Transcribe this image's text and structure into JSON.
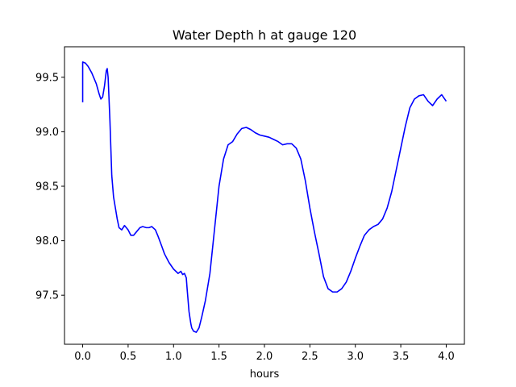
{
  "chart_data": {
    "type": "line",
    "title": "Water Depth h at gauge 120",
    "xlabel": "hours",
    "ylabel": "",
    "xlim": [
      -0.2,
      4.2
    ],
    "ylim": [
      97.05,
      99.78
    ],
    "xticks": [
      0.0,
      0.5,
      1.0,
      1.5,
      2.0,
      2.5,
      3.0,
      3.5,
      4.0
    ],
    "xtick_labels": [
      "0.0",
      "0.5",
      "1.0",
      "1.5",
      "2.0",
      "2.5",
      "3.0",
      "3.5",
      "4.0"
    ],
    "yticks": [
      97.5,
      98.0,
      98.5,
      99.0,
      99.5
    ],
    "ytick_labels": [
      "97.5",
      "98.0",
      "98.5",
      "99.0",
      "99.5"
    ],
    "grid": false,
    "legend": "none",
    "series": [
      {
        "color": "#0000ff",
        "x": [
          0.0,
          0.0,
          0.03,
          0.06,
          0.1,
          0.15,
          0.18,
          0.2,
          0.22,
          0.24,
          0.26,
          0.27,
          0.28,
          0.3,
          0.32,
          0.34,
          0.36,
          0.38,
          0.4,
          0.43,
          0.46,
          0.5,
          0.53,
          0.56,
          0.6,
          0.63,
          0.66,
          0.7,
          0.73,
          0.76,
          0.8,
          0.83,
          0.87,
          0.9,
          0.95,
          1.0,
          1.05,
          1.08,
          1.1,
          1.12,
          1.14,
          1.15,
          1.17,
          1.19,
          1.2,
          1.22,
          1.25,
          1.28,
          1.31,
          1.35,
          1.4,
          1.45,
          1.5,
          1.55,
          1.6,
          1.65,
          1.7,
          1.75,
          1.8,
          1.85,
          1.9,
          1.95,
          2.0,
          2.05,
          2.1,
          2.15,
          2.2,
          2.25,
          2.3,
          2.35,
          2.4,
          2.45,
          2.5,
          2.55,
          2.6,
          2.65,
          2.7,
          2.75,
          2.8,
          2.85,
          2.9,
          2.95,
          3.0,
          3.05,
          3.1,
          3.15,
          3.2,
          3.25,
          3.3,
          3.35,
          3.4,
          3.45,
          3.5,
          3.55,
          3.6,
          3.65,
          3.7,
          3.75,
          3.8,
          3.85,
          3.9,
          3.95,
          4.0
        ],
        "y": [
          99.27,
          99.64,
          99.63,
          99.6,
          99.54,
          99.44,
          99.35,
          99.3,
          99.32,
          99.42,
          99.56,
          99.58,
          99.5,
          99.1,
          98.6,
          98.4,
          98.3,
          98.2,
          98.12,
          98.1,
          98.14,
          98.1,
          98.05,
          98.05,
          98.09,
          98.12,
          98.13,
          98.12,
          98.12,
          98.13,
          98.1,
          98.04,
          97.95,
          97.88,
          97.8,
          97.74,
          97.7,
          97.72,
          97.69,
          97.7,
          97.66,
          97.55,
          97.35,
          97.24,
          97.2,
          97.17,
          97.16,
          97.2,
          97.3,
          97.45,
          97.7,
          98.1,
          98.5,
          98.75,
          98.88,
          98.91,
          98.98,
          99.03,
          99.04,
          99.02,
          98.99,
          98.97,
          98.96,
          98.95,
          98.93,
          98.91,
          98.88,
          98.89,
          98.89,
          98.85,
          98.75,
          98.55,
          98.3,
          98.08,
          97.88,
          97.67,
          97.56,
          97.53,
          97.53,
          97.56,
          97.62,
          97.72,
          97.84,
          97.95,
          98.05,
          98.1,
          98.13,
          98.15,
          98.2,
          98.3,
          98.45,
          98.65,
          98.85,
          99.05,
          99.22,
          99.3,
          99.33,
          99.34,
          99.28,
          99.24,
          99.3,
          99.34,
          99.28
        ]
      }
    ]
  }
}
